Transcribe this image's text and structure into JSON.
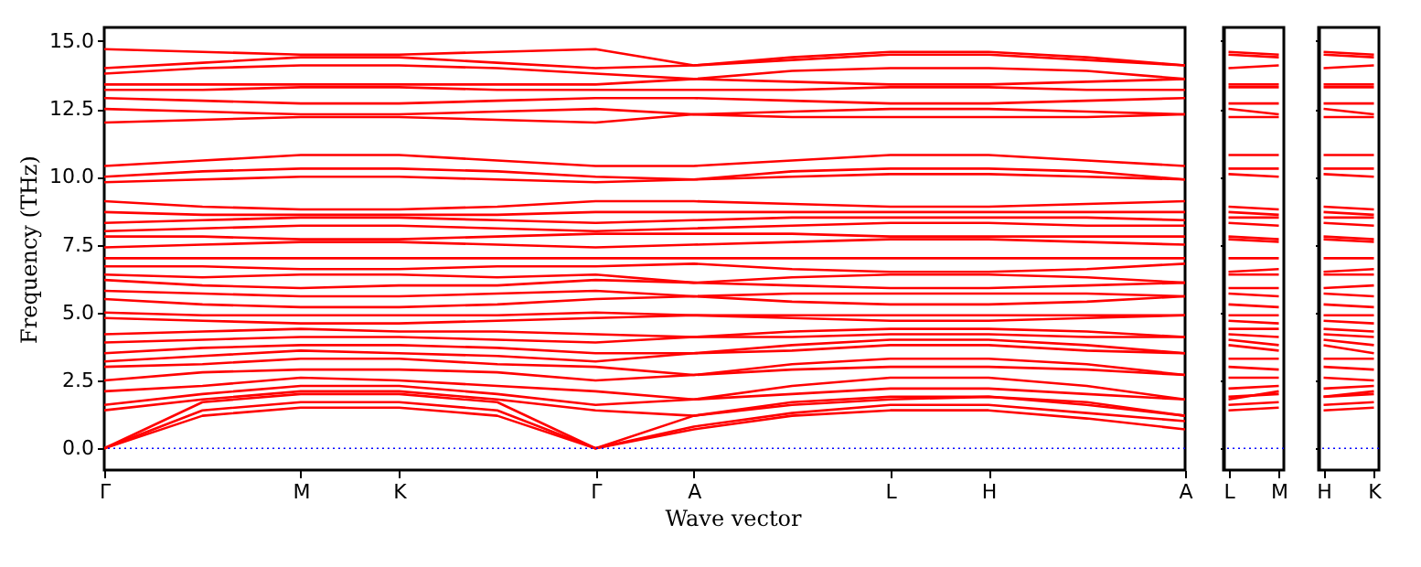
{
  "chart_data": [
    {
      "type": "line",
      "xlabel": "Wave vector",
      "ylabel": "Frequency (THz)",
      "grid": false,
      "legend": false,
      "categories": [
        "Γ",
        null,
        "M",
        "K",
        null,
        "Γ",
        "A",
        null,
        "L",
        "H",
        null,
        "A"
      ],
      "ylim": [
        -0.8,
        15.5
      ],
      "yticks": [
        {
          "value": 0,
          "label": "0.0"
        },
        {
          "value": 2.5,
          "label": "2.5"
        },
        {
          "value": 5,
          "label": "5.0"
        },
        {
          "value": 7.5,
          "label": "7.5"
        },
        {
          "value": 10,
          "label": "10.0"
        },
        {
          "value": 12.5,
          "label": "12.5"
        },
        {
          "value": 15,
          "label": "15.0"
        }
      ],
      "ref_lines": [
        {
          "axis": "y",
          "value": 0,
          "color": "#0000ff",
          "line_style": "dotted"
        }
      ],
      "series": [
        {
          "color": "#ff0000",
          "values": [
            0,
            1.2,
            1.5,
            1.5,
            1.2,
            0,
            0.7,
            1.2,
            1.4,
            1.4,
            1.1,
            0.7
          ]
        },
        {
          "color": "#ff0000",
          "values": [
            0,
            1.4,
            1.7,
            1.7,
            1.4,
            0,
            0.8,
            1.3,
            1.6,
            1.6,
            1.3,
            1.0
          ]
        },
        {
          "color": "#ff0000",
          "values": [
            0,
            1.7,
            2.0,
            2.0,
            1.7,
            0,
            1.2,
            1.7,
            1.9,
            1.9,
            1.6,
            1.2
          ]
        },
        {
          "color": "#ff0000",
          "values": [
            1.4,
            1.8,
            2.1,
            2.1,
            1.8,
            1.4,
            1.2,
            1.6,
            1.8,
            1.9,
            1.7,
            1.2
          ]
        },
        {
          "color": "#ff0000",
          "values": [
            1.6,
            2.0,
            2.3,
            2.3,
            2.0,
            1.6,
            1.8,
            2.0,
            2.2,
            2.2,
            2.0,
            1.8
          ]
        },
        {
          "color": "#ff0000",
          "values": [
            2.1,
            2.3,
            2.6,
            2.5,
            2.3,
            2.1,
            1.8,
            2.3,
            2.6,
            2.6,
            2.3,
            1.8
          ]
        },
        {
          "color": "#ff0000",
          "values": [
            2.5,
            2.8,
            2.9,
            2.9,
            2.8,
            2.5,
            2.7,
            2.9,
            3.0,
            3.0,
            2.9,
            2.7
          ]
        },
        {
          "color": "#ff0000",
          "values": [
            3.0,
            3.1,
            3.3,
            3.3,
            3.1,
            3.0,
            2.7,
            3.1,
            3.3,
            3.3,
            3.1,
            2.7
          ]
        },
        {
          "color": "#ff0000",
          "values": [
            3.2,
            3.4,
            3.6,
            3.5,
            3.4,
            3.2,
            3.5,
            3.6,
            3.8,
            3.8,
            3.6,
            3.5
          ]
        },
        {
          "color": "#ff0000",
          "values": [
            3.5,
            3.7,
            3.8,
            3.8,
            3.7,
            3.5,
            3.5,
            3.8,
            4.0,
            4.0,
            3.8,
            3.5
          ]
        },
        {
          "color": "#ff0000",
          "values": [
            3.9,
            4.0,
            4.1,
            4.1,
            4.0,
            3.9,
            4.1,
            4.1,
            4.2,
            4.2,
            4.1,
            4.1
          ]
        },
        {
          "color": "#ff0000",
          "values": [
            4.2,
            4.3,
            4.4,
            4.3,
            4.3,
            4.2,
            4.1,
            4.3,
            4.4,
            4.4,
            4.3,
            4.1
          ]
        },
        {
          "color": "#ff0000",
          "values": [
            4.8,
            4.7,
            4.6,
            4.6,
            4.7,
            4.8,
            4.9,
            4.8,
            4.7,
            4.7,
            4.8,
            4.9
          ]
        },
        {
          "color": "#ff0000",
          "values": [
            5.0,
            4.9,
            4.9,
            4.9,
            4.9,
            5.0,
            4.9,
            4.9,
            4.9,
            4.9,
            4.9,
            4.9
          ]
        },
        {
          "color": "#ff0000",
          "values": [
            5.5,
            5.3,
            5.2,
            5.2,
            5.3,
            5.5,
            5.6,
            5.4,
            5.3,
            5.3,
            5.4,
            5.6
          ]
        },
        {
          "color": "#ff0000",
          "values": [
            5.8,
            5.7,
            5.6,
            5.6,
            5.7,
            5.8,
            5.6,
            5.7,
            5.7,
            5.7,
            5.7,
            5.6
          ]
        },
        {
          "color": "#ff0000",
          "values": [
            6.2,
            6.0,
            5.9,
            6.0,
            6.0,
            6.2,
            6.1,
            6.0,
            5.9,
            5.9,
            6.0,
            6.1
          ]
        },
        {
          "color": "#ff0000",
          "values": [
            6.4,
            6.3,
            6.4,
            6.4,
            6.3,
            6.4,
            6.1,
            6.3,
            6.4,
            6.4,
            6.3,
            6.1
          ]
        },
        {
          "color": "#ff0000",
          "values": [
            6.7,
            6.7,
            6.6,
            6.6,
            6.7,
            6.7,
            6.8,
            6.6,
            6.5,
            6.5,
            6.6,
            6.8
          ]
        },
        {
          "color": "#ff0000",
          "values": [
            7.0,
            7.0,
            7.0,
            7.0,
            7.0,
            7.0,
            7.0,
            7.0,
            7.0,
            7.0,
            7.0,
            7.0
          ]
        },
        {
          "color": "#ff0000",
          "values": [
            7.4,
            7.5,
            7.6,
            7.6,
            7.5,
            7.4,
            7.5,
            7.6,
            7.7,
            7.7,
            7.6,
            7.5
          ]
        },
        {
          "color": "#ff0000",
          "values": [
            7.8,
            7.8,
            7.7,
            7.7,
            7.8,
            7.9,
            7.9,
            7.9,
            7.8,
            7.8,
            7.8,
            7.8
          ]
        },
        {
          "color": "#ff0000",
          "values": [
            8.0,
            8.1,
            8.2,
            8.2,
            8.1,
            8.0,
            8.1,
            8.2,
            8.3,
            8.3,
            8.2,
            8.2
          ]
        },
        {
          "color": "#ff0000",
          "values": [
            8.3,
            8.4,
            8.5,
            8.5,
            8.4,
            8.3,
            8.4,
            8.5,
            8.5,
            8.5,
            8.5,
            8.4
          ]
        },
        {
          "color": "#ff0000",
          "values": [
            8.7,
            8.6,
            8.6,
            8.6,
            8.6,
            8.7,
            8.7,
            8.7,
            8.7,
            8.7,
            8.7,
            8.7
          ]
        },
        {
          "color": "#ff0000",
          "values": [
            9.1,
            8.9,
            8.8,
            8.8,
            8.9,
            9.1,
            9.1,
            9.0,
            8.9,
            8.9,
            9.0,
            9.1
          ]
        },
        {
          "color": "#ff0000",
          "values": [
            9.8,
            9.9,
            10.0,
            10.0,
            9.9,
            9.8,
            9.9,
            10.0,
            10.1,
            10.1,
            10.0,
            9.9
          ]
        },
        {
          "color": "#ff0000",
          "values": [
            10.0,
            10.2,
            10.3,
            10.3,
            10.2,
            10.0,
            9.9,
            10.2,
            10.3,
            10.3,
            10.2,
            9.9
          ]
        },
        {
          "color": "#ff0000",
          "values": [
            10.4,
            10.6,
            10.8,
            10.8,
            10.6,
            10.4,
            10.4,
            10.6,
            10.8,
            10.8,
            10.6,
            10.4
          ]
        },
        {
          "color": "#ff0000",
          "values": [
            12.0,
            12.1,
            12.2,
            12.2,
            12.1,
            12.0,
            12.3,
            12.2,
            12.2,
            12.2,
            12.2,
            12.3
          ]
        },
        {
          "color": "#ff0000",
          "values": [
            12.5,
            12.4,
            12.3,
            12.3,
            12.4,
            12.5,
            12.3,
            12.4,
            12.5,
            12.5,
            12.4,
            12.3
          ]
        },
        {
          "color": "#ff0000",
          "values": [
            12.9,
            12.8,
            12.7,
            12.7,
            12.8,
            12.9,
            12.9,
            12.8,
            12.7,
            12.7,
            12.8,
            12.9
          ]
        },
        {
          "color": "#ff0000",
          "values": [
            13.2,
            13.2,
            13.3,
            13.3,
            13.2,
            13.2,
            13.2,
            13.2,
            13.3,
            13.3,
            13.2,
            13.2
          ]
        },
        {
          "color": "#ff0000",
          "values": [
            13.4,
            13.4,
            13.4,
            13.4,
            13.4,
            13.4,
            13.6,
            13.5,
            13.4,
            13.4,
            13.5,
            13.6
          ]
        },
        {
          "color": "#ff0000",
          "values": [
            13.8,
            14.0,
            14.1,
            14.1,
            14.0,
            13.8,
            13.6,
            13.9,
            14.0,
            14.0,
            13.9,
            13.6
          ]
        },
        {
          "color": "#ff0000",
          "values": [
            14.0,
            14.2,
            14.4,
            14.4,
            14.2,
            14.0,
            14.1,
            14.3,
            14.5,
            14.5,
            14.3,
            14.1
          ]
        },
        {
          "color": "#ff0000",
          "values": [
            14.7,
            14.6,
            14.5,
            14.5,
            14.6,
            14.7,
            14.1,
            14.4,
            14.6,
            14.6,
            14.4,
            14.1
          ]
        }
      ]
    },
    {
      "type": "line",
      "grid": false,
      "legend": false,
      "tick_labels": "x",
      "categories": [
        "L",
        "M"
      ],
      "ylim": [
        -0.8,
        15.5
      ],
      "yticks": [
        0,
        2.5,
        5,
        7.5,
        10,
        12.5,
        15
      ],
      "ref_lines": [
        {
          "axis": "y",
          "value": 0,
          "color": "#0000ff",
          "line_style": "dotted"
        }
      ],
      "series": [
        {
          "color": "#ff0000",
          "values": [
            1.4,
            1.5
          ]
        },
        {
          "color": "#ff0000",
          "values": [
            1.6,
            1.7
          ]
        },
        {
          "color": "#ff0000",
          "values": [
            1.9,
            2.0
          ]
        },
        {
          "color": "#ff0000",
          "values": [
            1.8,
            2.1
          ]
        },
        {
          "color": "#ff0000",
          "values": [
            2.2,
            2.3
          ]
        },
        {
          "color": "#ff0000",
          "values": [
            2.6,
            2.6
          ]
        },
        {
          "color": "#ff0000",
          "values": [
            3.0,
            2.9
          ]
        },
        {
          "color": "#ff0000",
          "values": [
            3.3,
            3.3
          ]
        },
        {
          "color": "#ff0000",
          "values": [
            3.8,
            3.6
          ]
        },
        {
          "color": "#ff0000",
          "values": [
            4.0,
            3.8
          ]
        },
        {
          "color": "#ff0000",
          "values": [
            4.2,
            4.1
          ]
        },
        {
          "color": "#ff0000",
          "values": [
            4.4,
            4.4
          ]
        },
        {
          "color": "#ff0000",
          "values": [
            4.7,
            4.6
          ]
        },
        {
          "color": "#ff0000",
          "values": [
            4.9,
            4.9
          ]
        },
        {
          "color": "#ff0000",
          "values": [
            5.3,
            5.2
          ]
        },
        {
          "color": "#ff0000",
          "values": [
            5.7,
            5.6
          ]
        },
        {
          "color": "#ff0000",
          "values": [
            5.9,
            5.9
          ]
        },
        {
          "color": "#ff0000",
          "values": [
            6.4,
            6.4
          ]
        },
        {
          "color": "#ff0000",
          "values": [
            6.5,
            6.6
          ]
        },
        {
          "color": "#ff0000",
          "values": [
            7.0,
            7.0
          ]
        },
        {
          "color": "#ff0000",
          "values": [
            7.7,
            7.6
          ]
        },
        {
          "color": "#ff0000",
          "values": [
            7.8,
            7.7
          ]
        },
        {
          "color": "#ff0000",
          "values": [
            8.3,
            8.2
          ]
        },
        {
          "color": "#ff0000",
          "values": [
            8.5,
            8.5
          ]
        },
        {
          "color": "#ff0000",
          "values": [
            8.7,
            8.6
          ]
        },
        {
          "color": "#ff0000",
          "values": [
            8.9,
            8.8
          ]
        },
        {
          "color": "#ff0000",
          "values": [
            10.1,
            10.0
          ]
        },
        {
          "color": "#ff0000",
          "values": [
            10.3,
            10.3
          ]
        },
        {
          "color": "#ff0000",
          "values": [
            10.8,
            10.8
          ]
        },
        {
          "color": "#ff0000",
          "values": [
            12.2,
            12.2
          ]
        },
        {
          "color": "#ff0000",
          "values": [
            12.5,
            12.3
          ]
        },
        {
          "color": "#ff0000",
          "values": [
            12.7,
            12.7
          ]
        },
        {
          "color": "#ff0000",
          "values": [
            13.3,
            13.3
          ]
        },
        {
          "color": "#ff0000",
          "values": [
            13.4,
            13.4
          ]
        },
        {
          "color": "#ff0000",
          "values": [
            14.0,
            14.1
          ]
        },
        {
          "color": "#ff0000",
          "values": [
            14.5,
            14.4
          ]
        },
        {
          "color": "#ff0000",
          "values": [
            14.6,
            14.5
          ]
        }
      ]
    },
    {
      "type": "line",
      "grid": false,
      "legend": false,
      "tick_labels": "x",
      "categories": [
        "H",
        "K"
      ],
      "ylim": [
        -0.8,
        15.5
      ],
      "yticks": [
        0,
        2.5,
        5,
        7.5,
        10,
        12.5,
        15
      ],
      "ref_lines": [
        {
          "axis": "y",
          "value": 0,
          "color": "#0000ff",
          "line_style": "dotted"
        }
      ],
      "series": [
        {
          "color": "#ff0000",
          "values": [
            1.4,
            1.5
          ]
        },
        {
          "color": "#ff0000",
          "values": [
            1.6,
            1.7
          ]
        },
        {
          "color": "#ff0000",
          "values": [
            1.9,
            2.0
          ]
        },
        {
          "color": "#ff0000",
          "values": [
            1.9,
            2.1
          ]
        },
        {
          "color": "#ff0000",
          "values": [
            2.2,
            2.3
          ]
        },
        {
          "color": "#ff0000",
          "values": [
            2.6,
            2.5
          ]
        },
        {
          "color": "#ff0000",
          "values": [
            3.0,
            2.9
          ]
        },
        {
          "color": "#ff0000",
          "values": [
            3.3,
            3.3
          ]
        },
        {
          "color": "#ff0000",
          "values": [
            3.8,
            3.5
          ]
        },
        {
          "color": "#ff0000",
          "values": [
            4.0,
            3.8
          ]
        },
        {
          "color": "#ff0000",
          "values": [
            4.2,
            4.1
          ]
        },
        {
          "color": "#ff0000",
          "values": [
            4.4,
            4.3
          ]
        },
        {
          "color": "#ff0000",
          "values": [
            4.7,
            4.6
          ]
        },
        {
          "color": "#ff0000",
          "values": [
            4.9,
            4.9
          ]
        },
        {
          "color": "#ff0000",
          "values": [
            5.3,
            5.2
          ]
        },
        {
          "color": "#ff0000",
          "values": [
            5.7,
            5.6
          ]
        },
        {
          "color": "#ff0000",
          "values": [
            5.9,
            6.0
          ]
        },
        {
          "color": "#ff0000",
          "values": [
            6.4,
            6.4
          ]
        },
        {
          "color": "#ff0000",
          "values": [
            6.5,
            6.6
          ]
        },
        {
          "color": "#ff0000",
          "values": [
            7.0,
            7.0
          ]
        },
        {
          "color": "#ff0000",
          "values": [
            7.7,
            7.6
          ]
        },
        {
          "color": "#ff0000",
          "values": [
            7.8,
            7.7
          ]
        },
        {
          "color": "#ff0000",
          "values": [
            8.3,
            8.2
          ]
        },
        {
          "color": "#ff0000",
          "values": [
            8.5,
            8.5
          ]
        },
        {
          "color": "#ff0000",
          "values": [
            8.7,
            8.6
          ]
        },
        {
          "color": "#ff0000",
          "values": [
            8.9,
            8.8
          ]
        },
        {
          "color": "#ff0000",
          "values": [
            10.1,
            10.0
          ]
        },
        {
          "color": "#ff0000",
          "values": [
            10.3,
            10.3
          ]
        },
        {
          "color": "#ff0000",
          "values": [
            10.8,
            10.8
          ]
        },
        {
          "color": "#ff0000",
          "values": [
            12.2,
            12.2
          ]
        },
        {
          "color": "#ff0000",
          "values": [
            12.5,
            12.3
          ]
        },
        {
          "color": "#ff0000",
          "values": [
            12.7,
            12.7
          ]
        },
        {
          "color": "#ff0000",
          "values": [
            13.3,
            13.3
          ]
        },
        {
          "color": "#ff0000",
          "values": [
            13.4,
            13.4
          ]
        },
        {
          "color": "#ff0000",
          "values": [
            14.0,
            14.1
          ]
        },
        {
          "color": "#ff0000",
          "values": [
            14.5,
            14.4
          ]
        },
        {
          "color": "#ff0000",
          "values": [
            14.6,
            14.5
          ]
        }
      ]
    }
  ]
}
